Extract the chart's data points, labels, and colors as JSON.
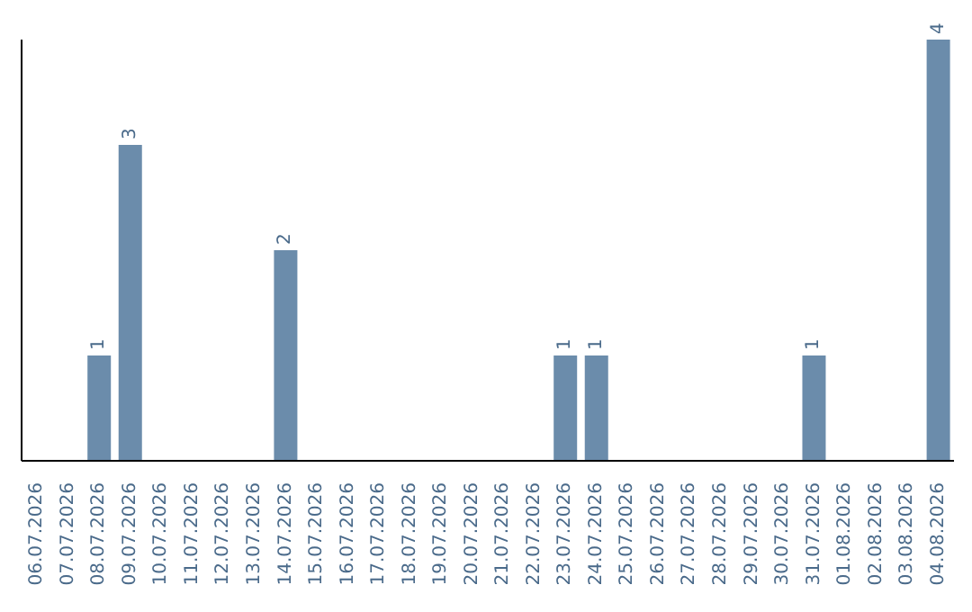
{
  "chart_data": {
    "type": "bar",
    "categories": [
      "06.07.2026",
      "07.07.2026",
      "08.07.2026",
      "09.07.2026",
      "10.07.2026",
      "11.07.2026",
      "12.07.2026",
      "13.07.2026",
      "14.07.2026",
      "15.07.2026",
      "16.07.2026",
      "17.07.2026",
      "18.07.2026",
      "19.07.2026",
      "20.07.2026",
      "21.07.2026",
      "22.07.2026",
      "23.07.2026",
      "24.07.2026",
      "25.07.2026",
      "26.07.2026",
      "27.07.2026",
      "28.07.2026",
      "29.07.2026",
      "30.07.2026",
      "31.07.2026",
      "01.08.2026",
      "02.08.2026",
      "03.08.2026",
      "04.08.2026"
    ],
    "values": [
      0,
      0,
      1,
      3,
      0,
      0,
      0,
      0,
      2,
      0,
      0,
      0,
      0,
      0,
      0,
      0,
      0,
      1,
      1,
      0,
      0,
      0,
      0,
      0,
      0,
      1,
      0,
      0,
      0,
      4
    ],
    "value_labels": [
      null,
      null,
      "1",
      "3",
      null,
      null,
      null,
      null,
      "2",
      null,
      null,
      null,
      null,
      null,
      null,
      null,
      null,
      "1",
      "1",
      null,
      null,
      null,
      null,
      null,
      null,
      "1",
      null,
      null,
      null,
      "4"
    ],
    "color": "#6b8cab",
    "ylim": [
      0,
      4
    ],
    "tick_labels": "x"
  }
}
